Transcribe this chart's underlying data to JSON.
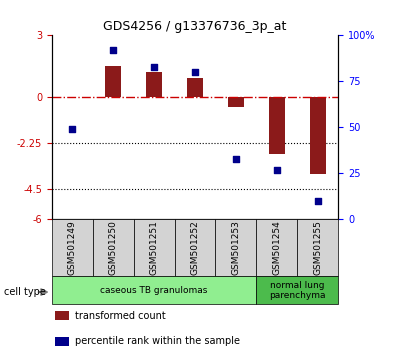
{
  "title": "GDS4256 / g13376736_3p_at",
  "samples": [
    "GSM501249",
    "GSM501250",
    "GSM501251",
    "GSM501252",
    "GSM501253",
    "GSM501254",
    "GSM501255"
  ],
  "transformed_count": [
    0.0,
    1.5,
    1.2,
    0.9,
    -0.5,
    -2.8,
    -3.8
  ],
  "percentile_rank": [
    49,
    92,
    83,
    80,
    33,
    27,
    10
  ],
  "ylim_left": [
    -6,
    3
  ],
  "ylim_right": [
    0,
    100
  ],
  "yticks_left": [
    3,
    0,
    -2.25,
    -4.5,
    -6
  ],
  "ytick_labels_left": [
    "3",
    "0",
    "-2.25",
    "-4.5",
    "-6"
  ],
  "yticks_right": [
    100,
    75,
    50,
    25,
    0
  ],
  "ytick_labels_right": [
    "100%",
    "75",
    "50",
    "25",
    "0"
  ],
  "hline_y": 0,
  "dotted_lines": [
    -2.25,
    -4.5
  ],
  "bar_color": "#8B1A1A",
  "dot_color": "#00008B",
  "cell_types": [
    {
      "label": "caseous TB granulomas",
      "samples": [
        0,
        1,
        2,
        3,
        4
      ],
      "color": "#90EE90"
    },
    {
      "label": "normal lung\nparenchyma",
      "samples": [
        5,
        6
      ],
      "color": "#32CD32"
    }
  ],
  "legend_items": [
    {
      "color": "#8B1A1A",
      "label": "transformed count"
    },
    {
      "color": "#00008B",
      "label": "percentile rank within the sample"
    }
  ],
  "cell_type_label": "cell type",
  "background_color": "#ffffff"
}
